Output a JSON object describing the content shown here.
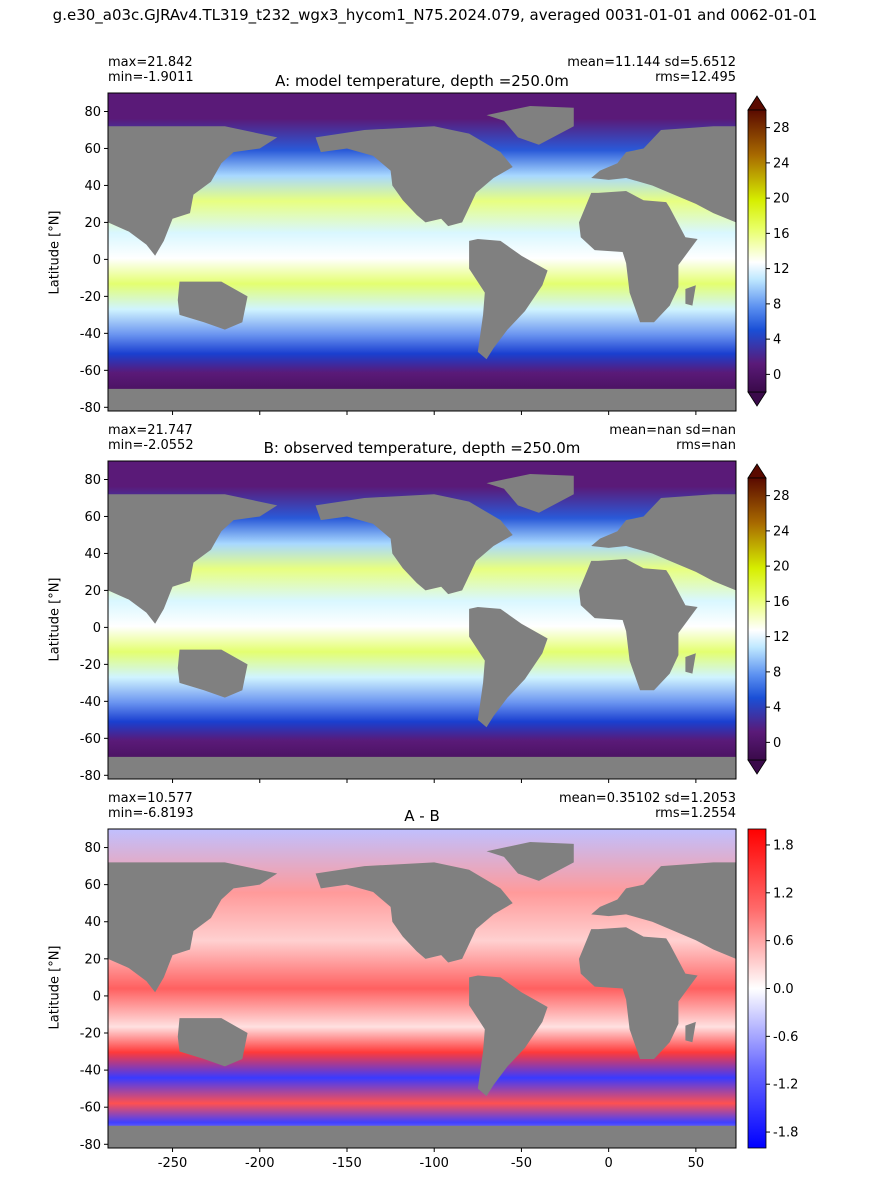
{
  "suptitle": "g.e30_a03c.GJRAv4.TL319_t232_wgx3_hycom1_N75.2024.079, averaged 0031-01-01 and 0062-01-01",
  "panels": [
    {
      "title": "A: model temperature, depth =250.0m",
      "stats_left": "max=21.842\nmin=-1.9011",
      "stats_right": "mean=11.144 sd=5.6512\nrms=12.495",
      "ylabel": "Latitude [°N]"
    },
    {
      "title": "B: observed temperature, depth =250.0m",
      "stats_left": "max=21.747\nmin=-2.0552",
      "stats_right": "mean=nan sd=nan\nrms=nan",
      "ylabel": "Latitude [°N]"
    },
    {
      "title": "A - B",
      "stats_left": "max=10.577\nmin=-6.8193",
      "stats_right": "mean=0.35102 sd=1.2053\nrms=1.2554",
      "ylabel": "Latitude [°N]"
    }
  ],
  "chart_data": [
    {
      "type": "heatmap",
      "title": "A: model temperature, depth =250.0m",
      "ylabel": "Latitude [°N]",
      "xlim": [
        -287,
        73
      ],
      "ylim": [
        -82,
        90
      ],
      "yticks": [
        -80,
        -60,
        -40,
        -20,
        0,
        20,
        40,
        60,
        80
      ],
      "colorbar": {
        "min": -2,
        "max": 30,
        "extend": "both",
        "ticks": [
          0,
          4,
          8,
          12,
          16,
          20,
          24,
          28
        ]
      }
    },
    {
      "type": "heatmap",
      "title": "B: observed temperature, depth =250.0m",
      "ylabel": "Latitude [°N]",
      "xlim": [
        -287,
        73
      ],
      "ylim": [
        -82,
        90
      ],
      "yticks": [
        -80,
        -60,
        -40,
        -20,
        0,
        20,
        40,
        60,
        80
      ],
      "colorbar": {
        "min": -2,
        "max": 30,
        "extend": "both",
        "ticks": [
          0,
          4,
          8,
          12,
          16,
          20,
          24,
          28
        ]
      }
    },
    {
      "type": "heatmap",
      "title": "A - B",
      "ylabel": "Latitude [°N]",
      "xlim": [
        -287,
        73
      ],
      "ylim": [
        -82,
        90
      ],
      "xticks": [
        -250,
        -200,
        -150,
        -100,
        -50,
        0,
        50
      ],
      "yticks": [
        -80,
        -60,
        -40,
        -20,
        0,
        20,
        40,
        60,
        80
      ],
      "colorbar": {
        "min": -2,
        "max": 2,
        "extend": "neither",
        "ticks": [
          -1.8,
          -1.2,
          -0.6,
          0.0,
          0.6,
          1.2,
          1.8
        ]
      }
    }
  ],
  "colors": {
    "land": "#808080",
    "temperature_scale": [
      "#3a0a4a",
      "#5a1a78",
      "#1a4fd6",
      "#5a8ff0",
      "#dff6ff",
      "#ffffff",
      "#e8ff66",
      "#d6ee00",
      "#a86a00",
      "#5a0a00"
    ],
    "difference_scale": [
      "#0000ff",
      "#8080ff",
      "#ffffff",
      "#ff8080",
      "#ff0000"
    ]
  }
}
